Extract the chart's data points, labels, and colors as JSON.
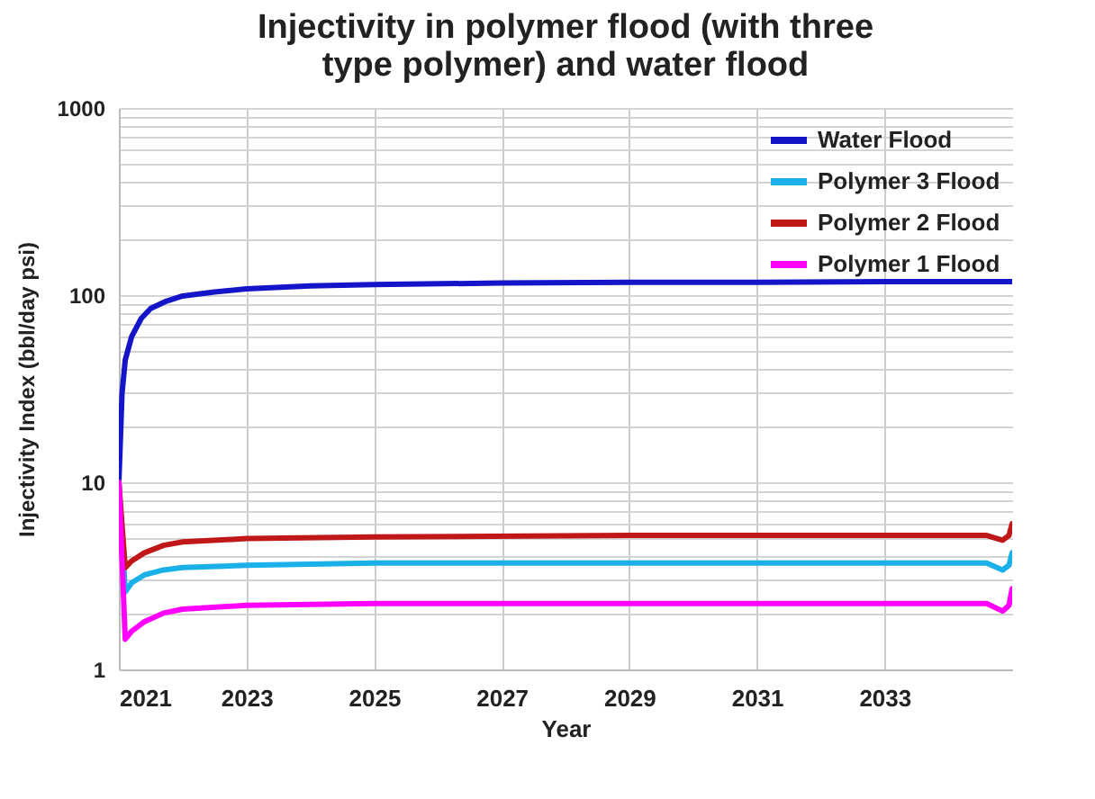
{
  "chart_data": {
    "type": "line",
    "title": "Injectivity in polymer flood (with three type polymer) and water flood",
    "xlabel": "Year",
    "ylabel": "Injectivity Index (bbl/day psi)",
    "log": "y",
    "grid": true,
    "legend": "top right",
    "line_style": "solid",
    "marker": "none",
    "xlim": [
      2021,
      2035
    ],
    "xticks": [
      2021,
      2023,
      2025,
      2027,
      2029,
      2031,
      2033
    ],
    "ylim": [
      1,
      1000
    ],
    "yticks": [
      1,
      {
        "value": 2,
        "label": null
      },
      {
        "value": 3,
        "label": null
      },
      {
        "value": 4,
        "label": null
      },
      {
        "value": 5,
        "label": null
      },
      {
        "value": 6,
        "label": null
      },
      {
        "value": 7,
        "label": null
      },
      {
        "value": 8,
        "label": null
      },
      {
        "value": 9,
        "label": null
      },
      10,
      {
        "value": 20,
        "label": null
      },
      {
        "value": 30,
        "label": null
      },
      {
        "value": 40,
        "label": null
      },
      {
        "value": 50,
        "label": null
      },
      {
        "value": 60,
        "label": null
      },
      {
        "value": 70,
        "label": null
      },
      {
        "value": 80,
        "label": null
      },
      {
        "value": 90,
        "label": null
      },
      100,
      {
        "value": 200,
        "label": null
      },
      {
        "value": 300,
        "label": null
      },
      {
        "value": 400,
        "label": null
      },
      {
        "value": 500,
        "label": null
      },
      {
        "value": 600,
        "label": null
      },
      {
        "value": 700,
        "label": null
      },
      {
        "value": 800,
        "label": null
      },
      {
        "value": 900,
        "label": null
      },
      1000
    ],
    "series": [
      {
        "name": "Water Flood",
        "color": "#1414c8",
        "x": [
          2021,
          2021.05,
          2021.1,
          2021.2,
          2021.35,
          2021.5,
          2021.75,
          2022,
          2022.5,
          2023,
          2024,
          2025,
          2027,
          2029,
          2031,
          2033,
          2035
        ],
        "values": [
          10,
          30,
          45,
          60,
          75,
          85,
          93,
          99,
          104,
          108,
          112,
          114,
          116,
          117,
          117,
          118,
          118
        ]
      },
      {
        "name": "Polymer 3 Flood",
        "color": "#1ab0e8",
        "x": [
          2021,
          2021.1,
          2021.2,
          2021.4,
          2021.7,
          2022,
          2023,
          2025,
          2034.6,
          2034.85,
          2034.95,
          2035
        ],
        "values": [
          10,
          2.6,
          2.9,
          3.2,
          3.4,
          3.5,
          3.6,
          3.7,
          3.7,
          3.4,
          3.6,
          4.2
        ]
      },
      {
        "name": "Polymer 2 Flood",
        "color": "#c01818",
        "x": [
          2021,
          2021.1,
          2021.2,
          2021.4,
          2021.7,
          2022,
          2023,
          2025,
          2029,
          2034.6,
          2034.85,
          2034.95,
          2035
        ],
        "values": [
          10,
          3.5,
          3.8,
          4.2,
          4.6,
          4.8,
          5.0,
          5.1,
          5.2,
          5.2,
          4.9,
          5.2,
          6
        ]
      },
      {
        "name": "Polymer 1 Flood",
        "color": "#ff00ff",
        "x": [
          2021,
          2021.1,
          2021.2,
          2021.4,
          2021.7,
          2022,
          2023,
          2025,
          2034.6,
          2034.85,
          2034.95,
          2035
        ],
        "values": [
          10,
          1.45,
          1.6,
          1.8,
          2.0,
          2.1,
          2.2,
          2.25,
          2.25,
          2.05,
          2.2,
          2.7
        ]
      }
    ]
  }
}
